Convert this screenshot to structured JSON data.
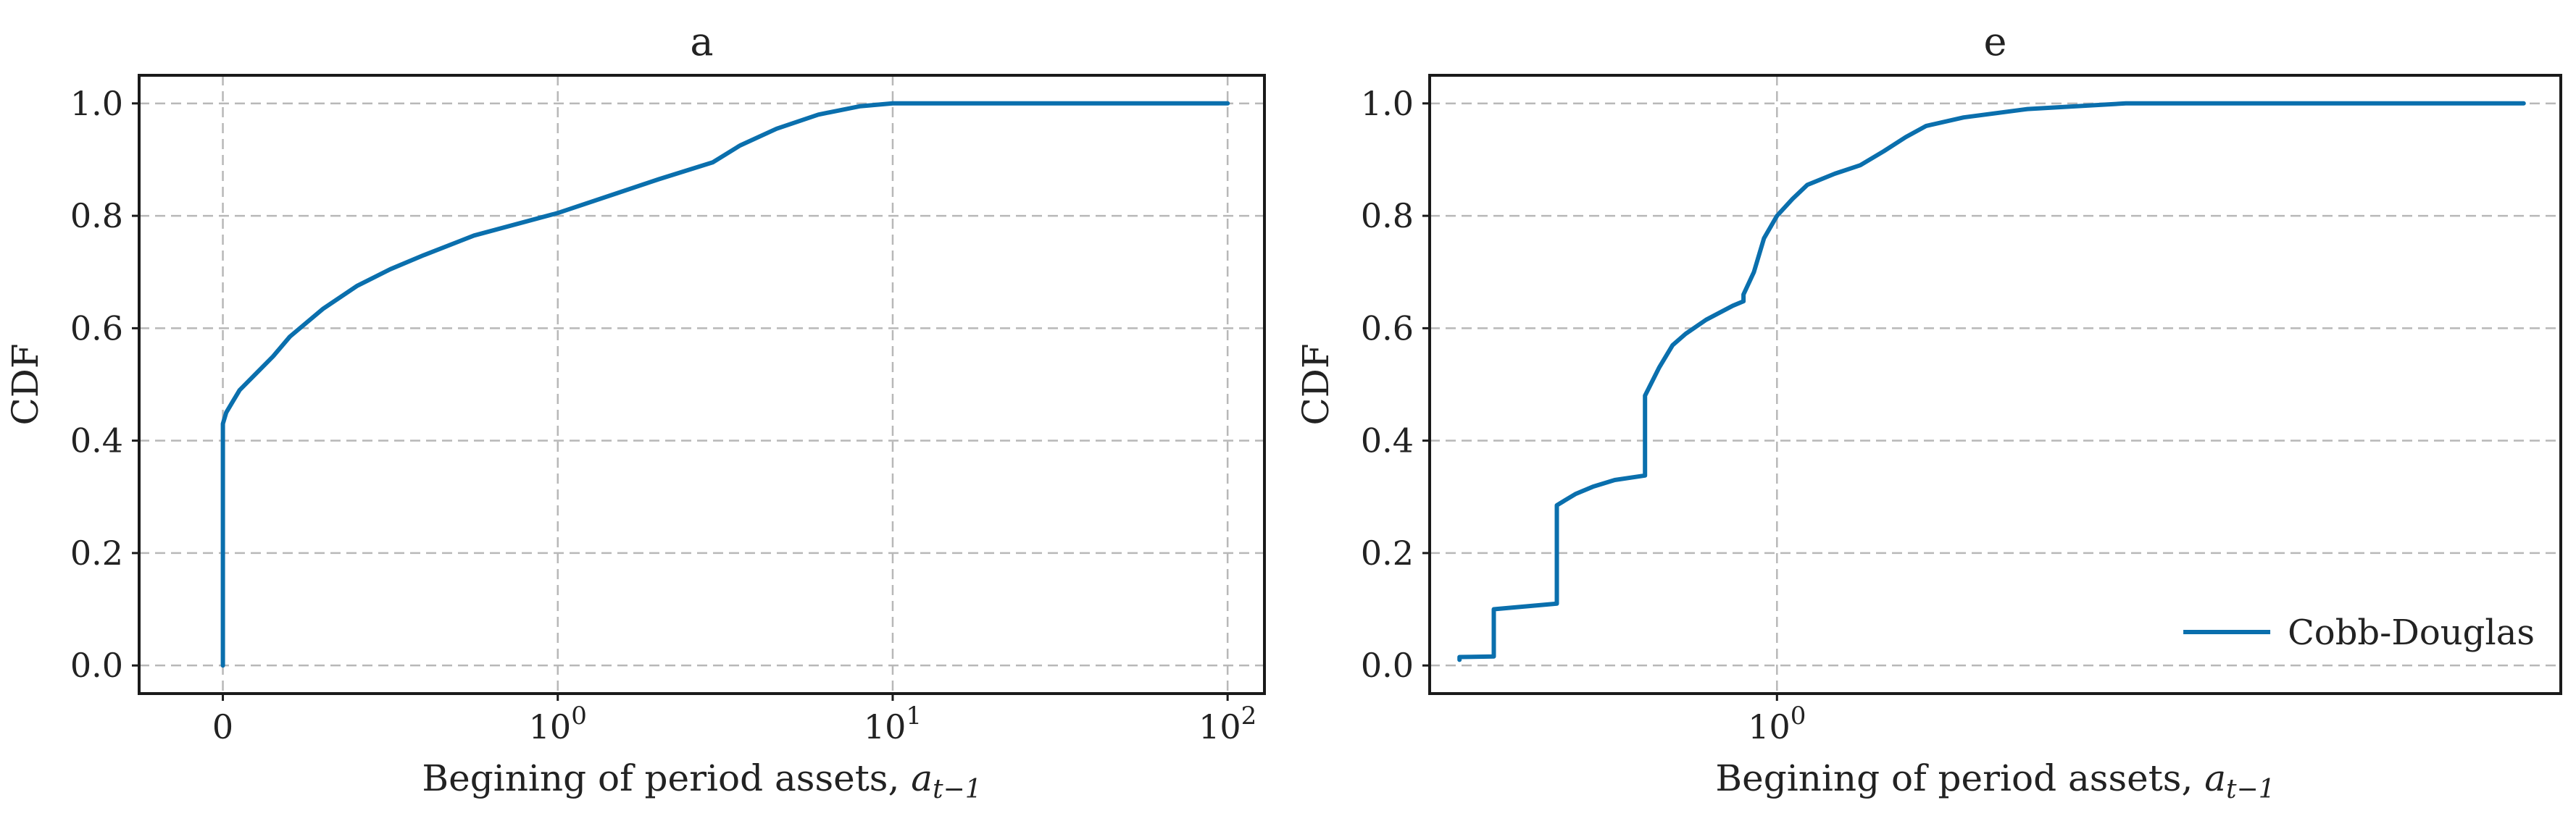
{
  "chart_data": [
    {
      "type": "line",
      "title": "a",
      "xlabel": "Begining of period assets, ",
      "xlabel_math": {
        "base": "a",
        "sub": "t−1"
      },
      "ylabel": "CDF",
      "xscale": "symlog",
      "grid": true,
      "xticks": [
        {
          "value": 0,
          "label": "0"
        },
        {
          "value": 1,
          "base": "10",
          "exp": "0"
        },
        {
          "value": 10,
          "base": "10",
          "exp": "1"
        },
        {
          "value": 100,
          "base": "10",
          "exp": "2"
        }
      ],
      "yticks": [
        "0.0",
        "0.2",
        "0.4",
        "0.6",
        "0.8",
        "1.0"
      ],
      "ylim": [
        -0.05,
        1.05
      ],
      "series": [
        {
          "color": "#0a6fad",
          "points": [
            [
              0,
              0
            ],
            [
              0,
              0.43
            ],
            [
              0.01,
              0.45
            ],
            [
              0.03,
              0.47
            ],
            [
              0.05,
              0.49
            ],
            [
              0.1,
              0.52
            ],
            [
              0.15,
              0.55
            ],
            [
              0.2,
              0.585
            ],
            [
              0.3,
              0.635
            ],
            [
              0.4,
              0.675
            ],
            [
              0.5,
              0.705
            ],
            [
              0.6,
              0.73
            ],
            [
              0.75,
              0.765
            ],
            [
              1.0,
              0.805
            ],
            [
              1.5,
              0.84
            ],
            [
              2.0,
              0.865
            ],
            [
              2.9,
              0.895
            ],
            [
              3.5,
              0.925
            ],
            [
              4.5,
              0.955
            ],
            [
              6,
              0.98
            ],
            [
              8,
              0.995
            ],
            [
              10,
              1.0
            ],
            [
              100,
              1.0
            ]
          ]
        }
      ]
    },
    {
      "type": "line",
      "title": "e",
      "xlabel": "Begining of period assets, ",
      "xlabel_math": {
        "base": "a",
        "sub": "t−1"
      },
      "ylabel": "CDF",
      "xscale": "log",
      "grid": true,
      "xticks": [
        {
          "value": 1,
          "base": "10",
          "exp": "0"
        }
      ],
      "yticks": [
        "0.0",
        "0.2",
        "0.4",
        "0.6",
        "0.8",
        "1.0"
      ],
      "ylim": [
        -0.05,
        1.05
      ],
      "legend": {
        "position": "lower-right",
        "entries": [
          "Cobb-Douglas"
        ]
      },
      "series": [
        {
          "name": "Cobb-Douglas",
          "color": "#0a6fad",
          "points": [
            [
              0.368,
              0.01
            ],
            [
              0.368,
              0.015
            ],
            [
              0.41,
              0.016
            ],
            [
              0.41,
              0.1
            ],
            [
              0.5,
              0.11
            ],
            [
              0.5,
              0.285
            ],
            [
              0.53,
              0.305
            ],
            [
              0.56,
              0.318
            ],
            [
              0.6,
              0.33
            ],
            [
              0.66,
              0.338
            ],
            [
              0.66,
              0.48
            ],
            [
              0.69,
              0.53
            ],
            [
              0.72,
              0.57
            ],
            [
              0.75,
              0.59
            ],
            [
              0.8,
              0.615
            ],
            [
              0.87,
              0.64
            ],
            [
              0.9,
              0.648
            ],
            [
              0.9,
              0.66
            ],
            [
              0.93,
              0.7
            ],
            [
              0.96,
              0.76
            ],
            [
              1.0,
              0.8
            ],
            [
              1.05,
              0.83
            ],
            [
              1.1,
              0.855
            ],
            [
              1.2,
              0.875
            ],
            [
              1.3,
              0.89
            ],
            [
              1.4,
              0.915
            ],
            [
              1.5,
              0.94
            ],
            [
              1.6,
              0.96
            ],
            [
              1.8,
              0.975
            ],
            [
              2.2,
              0.99
            ],
            [
              3.0,
              1.0
            ],
            [
              10.5,
              1.0
            ]
          ]
        }
      ]
    }
  ]
}
